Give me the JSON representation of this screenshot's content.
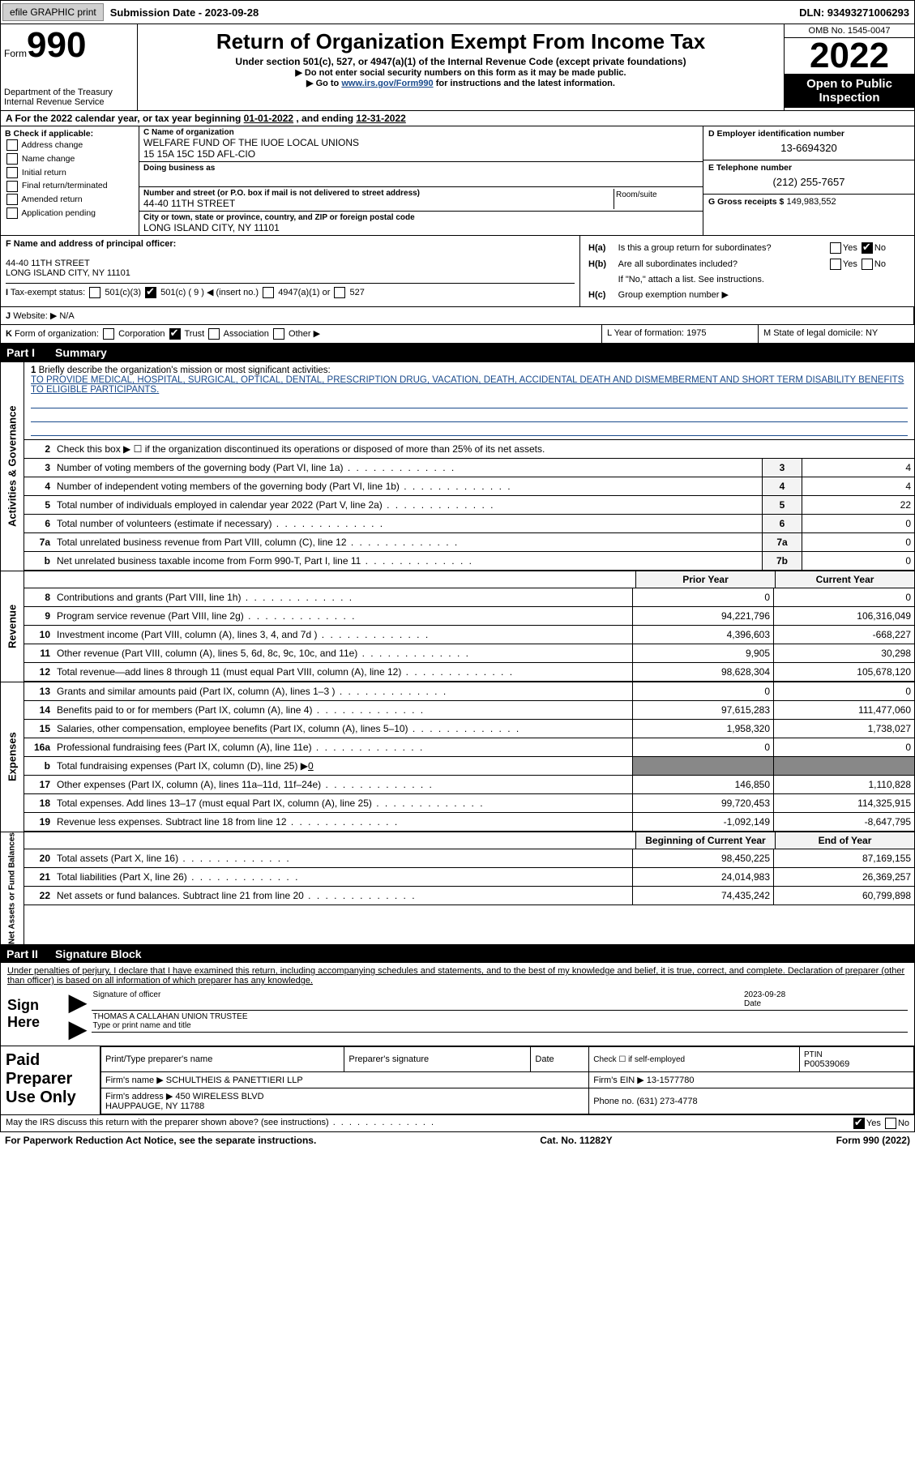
{
  "topbar": {
    "efile": "efile GRAPHIC print",
    "submission": "Submission Date - 2023-09-28",
    "dln": "DLN: 93493271006293"
  },
  "header": {
    "form_label": "Form",
    "form_num": "990",
    "title": "Return of Organization Exempt From Income Tax",
    "subtitle": "Under section 501(c), 527, or 4947(a)(1) of the Internal Revenue Code (except private foundations)",
    "note1": "▶ Do not enter social security numbers on this form as it may be made public.",
    "note2_pre": "▶ Go to ",
    "note2_link": "www.irs.gov/Form990",
    "note2_post": " for instructions and the latest information.",
    "dept": "Department of the Treasury\nInternal Revenue Service",
    "omb": "OMB No. 1545-0047",
    "year": "2022",
    "open": "Open to Public Inspection"
  },
  "lineA": {
    "text": "A For the 2022 calendar year, or tax year beginning ",
    "begin": "01-01-2022",
    "mid": " , and ending ",
    "end": "12-31-2022"
  },
  "colB": {
    "hdr": "B Check if applicable:",
    "opts": [
      "Address change",
      "Name change",
      "Initial return",
      "Final return/terminated",
      "Amended return",
      "Application pending"
    ]
  },
  "colC": {
    "nameLbl": "C Name of organization",
    "name": "WELFARE FUND OF THE IUOE LOCAL UNIONS\n15 15A 15C 15D AFL-CIO",
    "dbaLbl": "Doing business as",
    "dba": "",
    "streetLbl": "Number and street (or P.O. box if mail is not delivered to street address)",
    "street": "44-40 11TH STREET",
    "roomLbl": "Room/suite",
    "cityLbl": "City or town, state or province, country, and ZIP or foreign postal code",
    "city": "LONG ISLAND CITY, NY  11101"
  },
  "colD": {
    "einLbl": "D Employer identification number",
    "ein": "13-6694320",
    "phoneLbl": "E Telephone number",
    "phone": "(212) 255-7657",
    "grossLbl": "G Gross receipts $",
    "gross": "149,983,552"
  },
  "rowF": {
    "lbl": "F Name and address of principal officer:",
    "addr1": "44-40 11TH STREET",
    "addr2": "LONG ISLAND CITY, NY  11101"
  },
  "rowH": {
    "ha": "H(a)",
    "haText": "Is this a group return for subordinates?",
    "hb": "H(b)",
    "hbText": "Are all subordinates included?",
    "hbNote": "If \"No,\" attach a list. See instructions.",
    "hc": "H(c)",
    "hcText": "Group exemption number ▶",
    "yes": "Yes",
    "no": "No"
  },
  "rowI": {
    "i": "I",
    "lbl": "Tax-exempt status:",
    "o1": "501(c)(3)",
    "o2": "501(c) ( 9 ) ◀ (insert no.)",
    "o3": "4947(a)(1) or",
    "o4": "527"
  },
  "rowJ": {
    "j": "J",
    "lbl": "Website: ▶",
    "val": "N/A"
  },
  "rowK": {
    "k": "K",
    "lbl": "Form of organization:",
    "opts": [
      "Corporation",
      "Trust",
      "Association",
      "Other ▶"
    ]
  },
  "rowL": {
    "lbl": "L Year of formation:",
    "val": "1975"
  },
  "rowM": {
    "lbl": "M State of legal domicile:",
    "val": "NY"
  },
  "partI": {
    "num": "Part I",
    "title": "Summary"
  },
  "sideLabels": {
    "act": "Activities & Governance",
    "rev": "Revenue",
    "exp": "Expenses",
    "net": "Net Assets or\nFund Balances"
  },
  "mission": {
    "num": "1",
    "hdr": "Briefly describe the organization's mission or most significant activities:",
    "text": "TO PROVIDE MEDICAL, HOSPITAL, SURGICAL, OPTICAL, DENTAL, PRESCRIPTION DRUG, VACATION, DEATH, ACCIDENTAL DEATH AND DISMEMBERMENT AND SHORT TERM DISABILITY BENEFITS TO ELIGIBLE PARTICIPANTS."
  },
  "line2": {
    "num": "2",
    "txt": "Check this box ▶ ☐ if the organization discontinued its operations or disposed of more than 25% of its net assets."
  },
  "govLines": [
    {
      "n": "3",
      "t": "Number of voting members of the governing body (Part VI, line 1a)",
      "b": "3",
      "v": "4"
    },
    {
      "n": "4",
      "t": "Number of independent voting members of the governing body (Part VI, line 1b)",
      "b": "4",
      "v": "4"
    },
    {
      "n": "5",
      "t": "Total number of individuals employed in calendar year 2022 (Part V, line 2a)",
      "b": "5",
      "v": "22"
    },
    {
      "n": "6",
      "t": "Total number of volunteers (estimate if necessary)",
      "b": "6",
      "v": "0"
    },
    {
      "n": "7a",
      "t": "Total unrelated business revenue from Part VIII, column (C), line 12",
      "b": "7a",
      "v": "0"
    },
    {
      "n": "b",
      "t": "Net unrelated business taxable income from Form 990-T, Part I, line 11",
      "b": "7b",
      "v": "0"
    }
  ],
  "colHdrs": {
    "py": "Prior Year",
    "cy": "Current Year",
    "bcy": "Beginning of Current Year",
    "eoy": "End of Year"
  },
  "revLines": [
    {
      "n": "8",
      "t": "Contributions and grants (Part VIII, line 1h)",
      "c1": "0",
      "c2": "0"
    },
    {
      "n": "9",
      "t": "Program service revenue (Part VIII, line 2g)",
      "c1": "94,221,796",
      "c2": "106,316,049"
    },
    {
      "n": "10",
      "t": "Investment income (Part VIII, column (A), lines 3, 4, and 7d )",
      "c1": "4,396,603",
      "c2": "-668,227"
    },
    {
      "n": "11",
      "t": "Other revenue (Part VIII, column (A), lines 5, 6d, 8c, 9c, 10c, and 11e)",
      "c1": "9,905",
      "c2": "30,298"
    },
    {
      "n": "12",
      "t": "Total revenue—add lines 8 through 11 (must equal Part VIII, column (A), line 12)",
      "c1": "98,628,304",
      "c2": "105,678,120"
    }
  ],
  "expLines": [
    {
      "n": "13",
      "t": "Grants and similar amounts paid (Part IX, column (A), lines 1–3 )",
      "c1": "0",
      "c2": "0"
    },
    {
      "n": "14",
      "t": "Benefits paid to or for members (Part IX, column (A), line 4)",
      "c1": "97,615,283",
      "c2": "111,477,060"
    },
    {
      "n": "15",
      "t": "Salaries, other compensation, employee benefits (Part IX, column (A), lines 5–10)",
      "c1": "1,958,320",
      "c2": "1,738,027"
    },
    {
      "n": "16a",
      "t": "Professional fundraising fees (Part IX, column (A), line 11e)",
      "c1": "0",
      "c2": "0"
    },
    {
      "n": "b",
      "t": "Total fundraising expenses (Part IX, column (D), line 25) ▶",
      "fval": "0",
      "shade": true
    },
    {
      "n": "17",
      "t": "Other expenses (Part IX, column (A), lines 11a–11d, 11f–24e)",
      "c1": "146,850",
      "c2": "1,110,828"
    },
    {
      "n": "18",
      "t": "Total expenses. Add lines 13–17 (must equal Part IX, column (A), line 25)",
      "c1": "99,720,453",
      "c2": "114,325,915"
    },
    {
      "n": "19",
      "t": "Revenue less expenses. Subtract line 18 from line 12",
      "c1": "-1,092,149",
      "c2": "-8,647,795"
    }
  ],
  "netLines": [
    {
      "n": "20",
      "t": "Total assets (Part X, line 16)",
      "c1": "98,450,225",
      "c2": "87,169,155"
    },
    {
      "n": "21",
      "t": "Total liabilities (Part X, line 26)",
      "c1": "24,014,983",
      "c2": "26,369,257"
    },
    {
      "n": "22",
      "t": "Net assets or fund balances. Subtract line 21 from line 20",
      "c1": "74,435,242",
      "c2": "60,799,898"
    }
  ],
  "partII": {
    "num": "Part II",
    "title": "Signature Block"
  },
  "sig": {
    "decl": "Under penalties of perjury, I declare that I have examined this return, including accompanying schedules and statements, and to the best of my knowledge and belief, it is true, correct, and complete. Declaration of preparer (other than officer) is based on all information of which preparer has any knowledge.",
    "sign": "Sign Here",
    "sigOff": "Signature of officer",
    "date": "2023-09-28",
    "dateLbl": "Date",
    "name": "THOMAS A CALLAHAN  UNION TRUSTEE",
    "nameLbl": "Type or print name and title"
  },
  "prep": {
    "lbl": "Paid Preparer Use Only",
    "h1": "Print/Type preparer's name",
    "h2": "Preparer's signature",
    "h3": "Date",
    "h4": "Check ☐ if self-employed",
    "h5": "PTIN",
    "ptin": "P00539069",
    "firmLbl": "Firm's name ▶",
    "firm": "SCHULTHEIS & PANETTIERI LLP",
    "einLbl": "Firm's EIN ▶",
    "ein": "13-1577780",
    "addrLbl": "Firm's address ▶",
    "addr": "450 WIRELESS BLVD\nHAUPPAUGE, NY  11788",
    "phoneLbl": "Phone no.",
    "phone": "(631) 273-4778"
  },
  "footer": {
    "q": "May the IRS discuss this return with the preparer shown above? (see instructions)",
    "yes": "Yes",
    "no": "No",
    "pra": "For Paperwork Reduction Act Notice, see the separate instructions.",
    "cat": "Cat. No. 11282Y",
    "form": "Form 990 (2022)"
  }
}
